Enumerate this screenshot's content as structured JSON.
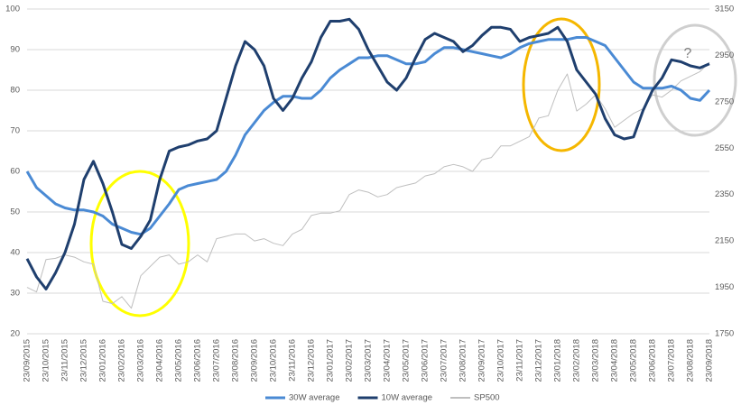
{
  "chart_data": {
    "type": "line",
    "categories": [
      "23/09/2015",
      null,
      "23/10/2015",
      null,
      "23/11/2015",
      null,
      "23/12/2015",
      null,
      "23/01/2016",
      null,
      "23/02/2016",
      null,
      "23/03/2016",
      null,
      "23/04/2016",
      null,
      "23/05/2016",
      null,
      "23/06/2016",
      null,
      "23/07/2016",
      null,
      "23/08/2016",
      null,
      "23/09/2016",
      null,
      "23/10/2016",
      null,
      "23/11/2016",
      null,
      "23/12/2016",
      null,
      "23/01/2017",
      null,
      "23/02/2017",
      null,
      "23/03/2017",
      null,
      "23/04/2017",
      null,
      "23/05/2017",
      null,
      "23/06/2017",
      null,
      "23/07/2017",
      null,
      "23/08/2017",
      null,
      "23/09/2017",
      null,
      "23/10/2017",
      null,
      "23/11/2017",
      null,
      "23/12/2017",
      null,
      "23/01/2018",
      null,
      "23/02/2018",
      null,
      "23/03/2018",
      null,
      "23/04/2018",
      null,
      "23/05/2018",
      null,
      "23/06/2018",
      null,
      "23/07/2018",
      null,
      "23/08/2018",
      null,
      "23/09/2018"
    ],
    "series": [
      {
        "name": "30W average",
        "color": "#4a8ad4",
        "width": 3,
        "values": [
          60,
          56,
          54,
          52,
          51,
          50.5,
          50.5,
          50,
          49,
          47,
          46,
          45,
          44.5,
          46,
          49,
          52,
          55.5,
          56.5,
          57,
          57.5,
          58,
          60,
          64,
          69,
          72,
          75,
          77,
          78.5,
          78.5,
          78,
          78,
          80,
          83,
          85,
          86.5,
          88,
          88,
          88.5,
          88.5,
          87.5,
          86.5,
          86.5,
          87,
          89,
          90.5,
          90.5,
          90,
          89.5,
          89,
          88.5,
          88,
          89,
          90.5,
          91.5,
          92,
          92.5,
          92.5,
          92.5,
          93,
          93,
          92,
          91,
          88,
          85,
          82,
          80.5,
          80.5,
          80.5,
          81,
          80,
          78,
          77.5,
          80
        ]
      },
      {
        "name": "10W average",
        "color": "#1f3f6e",
        "width": 3,
        "values": [
          38.5,
          34,
          31,
          35,
          40,
          47,
          58,
          62.5,
          57,
          50,
          42,
          41,
          44,
          48,
          58,
          65,
          66,
          66.5,
          67.5,
          68,
          70,
          78,
          86,
          92,
          90,
          86,
          78,
          75,
          78,
          83,
          87,
          93,
          97,
          97,
          97.5,
          95,
          90,
          86,
          82,
          80,
          83,
          88,
          92.5,
          94,
          93,
          92,
          89.5,
          91,
          93.5,
          95.5,
          95.5,
          95,
          92,
          93,
          93.5,
          94,
          95.5,
          92,
          85,
          82,
          79,
          73,
          69,
          68,
          68.5,
          75,
          80,
          83,
          87.5,
          87,
          86,
          85.5,
          86.5
        ]
      },
      {
        "name": "SP500",
        "color": "#bfbfbf",
        "width": 1,
        "axis": "y2",
        "values": [
          1950,
          1930,
          2070,
          2075,
          2090,
          2080,
          2060,
          2050,
          1890,
          1880,
          1910,
          1860,
          2000,
          2040,
          2080,
          2090,
          2050,
          2060,
          2090,
          2060,
          2160,
          2170,
          2180,
          2180,
          2150,
          2160,
          2140,
          2130,
          2180,
          2200,
          2260,
          2270,
          2270,
          2280,
          2350,
          2370,
          2360,
          2340,
          2350,
          2380,
          2390,
          2400,
          2430,
          2440,
          2470,
          2480,
          2470,
          2450,
          2500,
          2510,
          2560,
          2560,
          2580,
          2600,
          2680,
          2690,
          2800,
          2870,
          2710,
          2740,
          2780,
          2720,
          2640,
          2670,
          2700,
          2720,
          2780,
          2770,
          2800,
          2840,
          2860,
          2880,
          2920
        ]
      }
    ],
    "ylim": [
      20,
      100
    ],
    "yticks": [
      20,
      30,
      40,
      50,
      60,
      70,
      80,
      90,
      100
    ],
    "y2lim": [
      1750,
      3150
    ],
    "y2ticks": [
      1750,
      1950,
      2150,
      2350,
      2550,
      2750,
      2950,
      3150
    ],
    "grid": true,
    "legend": "bottom",
    "annotation": "?"
  }
}
